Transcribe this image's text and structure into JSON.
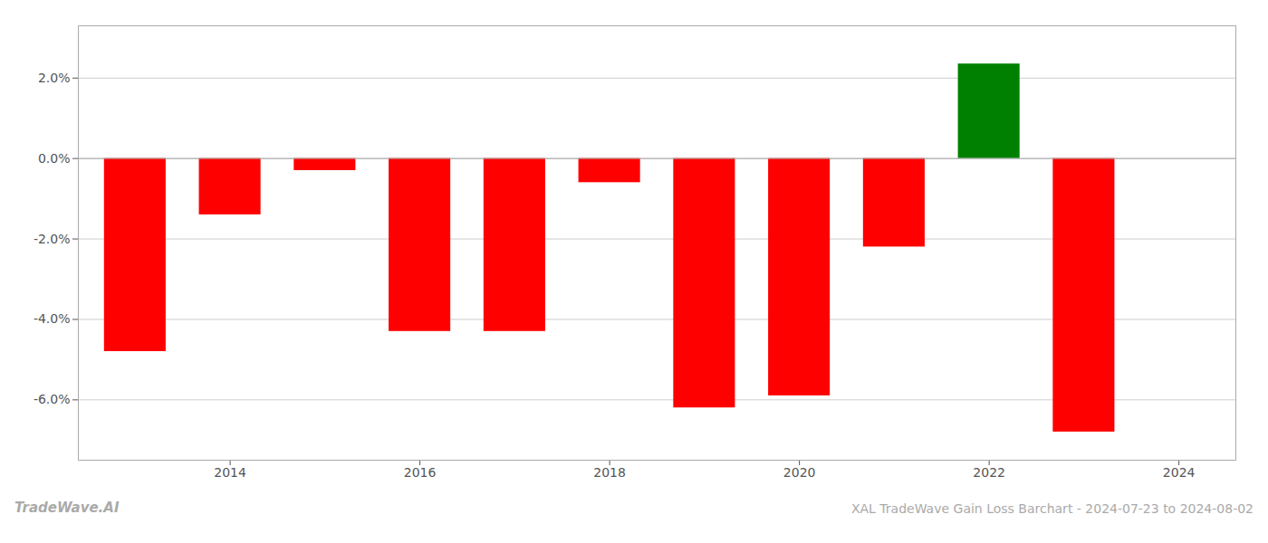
{
  "chart_data": {
    "type": "bar",
    "title": "XAL TradeWave Gain Loss Barchart - 2024-07-23 to 2024-08-02",
    "annotations": [
      "TradeWave.AI"
    ],
    "x": [
      2013,
      2014,
      2015,
      2016,
      2017,
      2018,
      2019,
      2020,
      2021,
      2022,
      2023
    ],
    "values": [
      -0.048,
      -0.014,
      -0.003,
      -0.043,
      -0.043,
      -0.006,
      -0.062,
      -0.059,
      -0.022,
      0.0235,
      -0.068
    ],
    "colors": [
      "red",
      "red",
      "red",
      "red",
      "red",
      "red",
      "red",
      "red",
      "red",
      "green",
      "red"
    ],
    "xlim": [
      2012.4,
      2024.6
    ],
    "xticks": [
      2014,
      2016,
      2018,
      2020,
      2022,
      2024
    ],
    "ylim": [
      -0.075,
      0.033
    ],
    "yticks": [
      {
        "value": -0.06,
        "label": "-6.0%"
      },
      {
        "value": -0.04,
        "label": "-4.0%"
      },
      {
        "value": -0.02,
        "label": "-2.0%"
      },
      {
        "value": 0,
        "label": "0.0%"
      },
      {
        "value": 0.02,
        "label": "2.0%"
      }
    ],
    "grid": true
  }
}
